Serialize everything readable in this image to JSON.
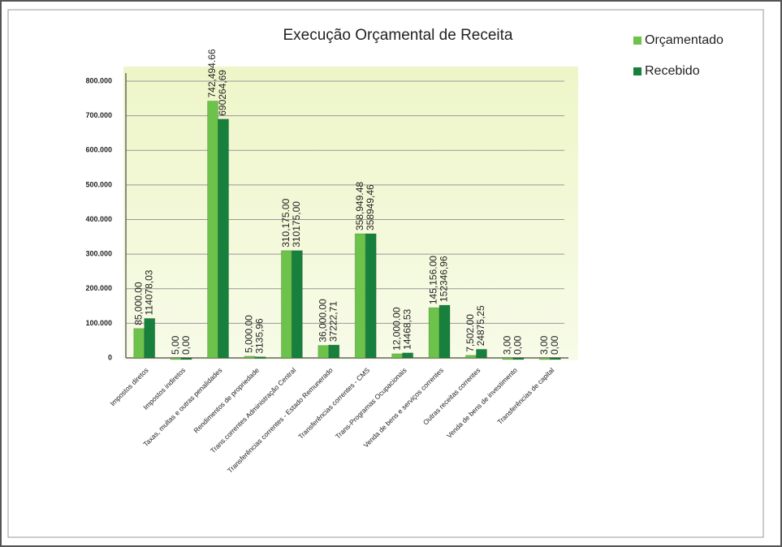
{
  "chart_data": {
    "type": "bar",
    "title": "Execução Orçamental de Receita",
    "categories": [
      "Impostos diretos",
      "Impostos indiretos",
      "Taxas, multas e outras penalidades",
      "Rendimentos de propriedade",
      "Trans.correntes Administração Central",
      "Transferências correntes - Estado Remunerado",
      "Transferências correntes - CMS",
      "Trans-Programas Ocupacionais",
      "Venda de bens e serviços correntes",
      "Outras receitas correntes",
      "Venda de bens de investimento",
      "Transferências de capital"
    ],
    "series": [
      {
        "name": "Orçamentado",
        "color": "#6cc24a",
        "values": [
          85000,
          5,
          742494.66,
          5000,
          310175,
          36000,
          358949.48,
          12000,
          145156,
          7502,
          3,
          3
        ],
        "value_labels": [
          "85,000.00",
          "5,00",
          "742,494.66",
          "5,000.00",
          "310,175.00",
          "36,000.00",
          "358,949.48",
          "12,000.00",
          "145,156.00",
          "7,502.00",
          "3,00",
          "3,00"
        ]
      },
      {
        "name": "Recebido",
        "color": "#17803d",
        "values": [
          114078.03,
          0,
          690264.69,
          3135.96,
          310175,
          37222.71,
          358949.46,
          14468.53,
          152346.96,
          24875.25,
          0,
          0
        ],
        "value_labels": [
          "114078,03",
          "0,00",
          "690264,69",
          "3135,96",
          "310175,00",
          "37222,71",
          "358949,46",
          "14468,53",
          "152346,96",
          "24875,25",
          "0,00",
          "0,00"
        ]
      }
    ],
    "ylim": [
      0,
      800000
    ],
    "yticks": [
      0,
      {
        "value": 100000,
        "label": "100.000"
      },
      {
        "value": 200000,
        "label": "200.000"
      },
      {
        "value": 300000,
        "label": "300.000"
      },
      {
        "value": 400000,
        "label": "400.000"
      },
      {
        "value": 500000,
        "label": "500.000"
      },
      {
        "value": 600000,
        "label": "600.000"
      },
      {
        "value": 700000,
        "label": "700.000"
      },
      {
        "value": 800000,
        "label": "800.000"
      }
    ],
    "grid": true,
    "legend": "top-right"
  }
}
